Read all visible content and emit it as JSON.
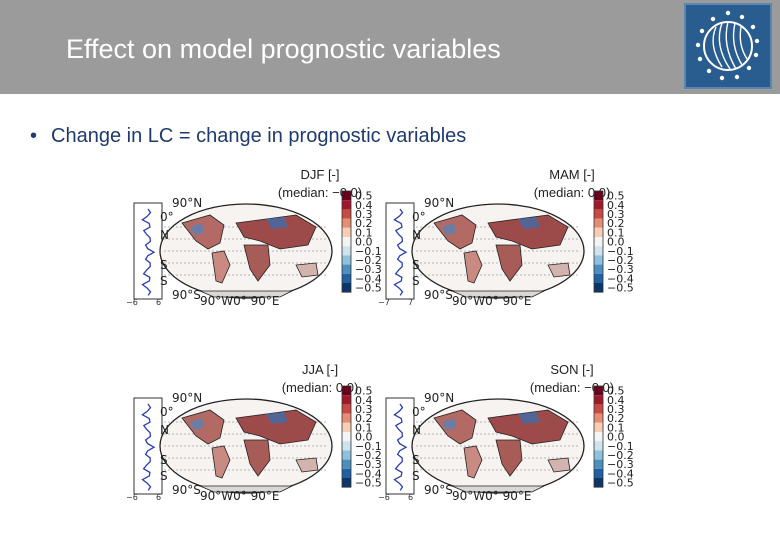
{
  "slide": {
    "title": "Effect on model prognostic variables",
    "bullet": "Change in LC  = change in prognostic variables"
  },
  "colorbar": {
    "ticks": [
      "0.5",
      "0.4",
      "0.3",
      "0.2",
      "0.1",
      "0.0",
      "−0.1",
      "−0.2",
      "−0.3",
      "−0.4",
      "−0.5"
    ],
    "colors": [
      "#67001f",
      "#9e1a2b",
      "#c74a44",
      "#e58e73",
      "#f6cdb7",
      "#f4f4f4",
      "#cfe2ee",
      "#8fc0dc",
      "#4a8fbf",
      "#2161a3",
      "#0b3668"
    ]
  },
  "map_axis_labels": {
    "lat_north": "90°N",
    "lat_zero": "0°",
    "lat_south": "90°S",
    "lon_label": "90°W0° 90°E",
    "clipped_letters": [
      "N",
      "S",
      "S"
    ]
  },
  "panels": [
    {
      "title": "DJF [-]",
      "median": "(median: −0.0)",
      "profile_xticks": [
        "−6",
        "6"
      ]
    },
    {
      "title": "MAM [-]",
      "median": "(median: 0.0)",
      "profile_xticks": [
        "−7",
        "7"
      ]
    },
    {
      "title": "JJA [-]",
      "median": "(median: 0.0)",
      "profile_xticks": [
        "−6",
        "6"
      ]
    },
    {
      "title": "SON [-]",
      "median": "(median: −0.0)",
      "profile_xticks": [
        "−6",
        "6"
      ]
    }
  ]
}
